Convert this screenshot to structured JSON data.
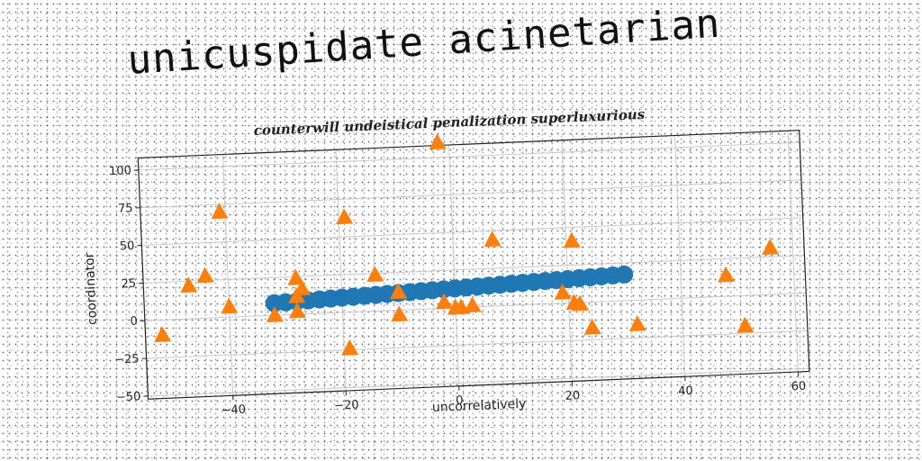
{
  "title": "unicuspidate acinetarian",
  "chart_data": {
    "type": "scatter",
    "title": "counterwill undeistical penalization superluxurious",
    "xlabel": "uncorrelatively",
    "ylabel": "coordinator",
    "xlim": [
      -55,
      62
    ],
    "ylim": [
      -52,
      108
    ],
    "xticks": [
      -40,
      -20,
      0,
      20,
      40,
      60
    ],
    "yticks": [
      -50,
      -25,
      0,
      25,
      50,
      75,
      100
    ],
    "grid": true,
    "colors": {
      "blue": "#1f77b4",
      "orange": "#ff7f0e"
    },
    "series": [
      {
        "marker": "circle",
        "color": "#1f77b4",
        "x": [
          -32,
          -30,
          -28,
          -26,
          -24,
          -22,
          -20,
          -18,
          -16,
          -14,
          -12,
          -10,
          -8,
          -6,
          -4,
          -2,
          0,
          2,
          4,
          6,
          8,
          10,
          12,
          14,
          16,
          18,
          20,
          22,
          24,
          26,
          28,
          30
        ],
        "y": [
          8,
          8.3,
          8.6,
          8.9,
          9.2,
          9.5,
          9.8,
          10.1,
          10.4,
          10.7,
          11,
          11.3,
          11.6,
          11.9,
          12.2,
          12.5,
          12.8,
          13.1,
          13.4,
          13.7,
          14,
          14.3,
          14.6,
          14.9,
          15.2,
          15.5,
          15.8,
          16.1,
          16.4,
          16.7,
          17,
          17.3
        ]
      },
      {
        "marker": "triangle",
        "color": "#ff7f0e",
        "x": [
          -52,
          -47,
          -44,
          -41,
          -40,
          -32,
          -28,
          -28,
          -28,
          -27,
          -19,
          -19,
          -14,
          -10,
          -10,
          -2,
          -2,
          0,
          1,
          3,
          7,
          19,
          21,
          21,
          22,
          24,
          32,
          48,
          51,
          56
        ],
        "y": [
          -10,
          22,
          28,
          70,
          7,
          0,
          2,
          12,
          24,
          17,
          -24,
          63,
          24,
          -3,
          12,
          110,
          4,
          0,
          0,
          1,
          44,
          7,
          0,
          41,
          -1,
          -17,
          -16,
          14,
          -20,
          31
        ]
      }
    ]
  }
}
